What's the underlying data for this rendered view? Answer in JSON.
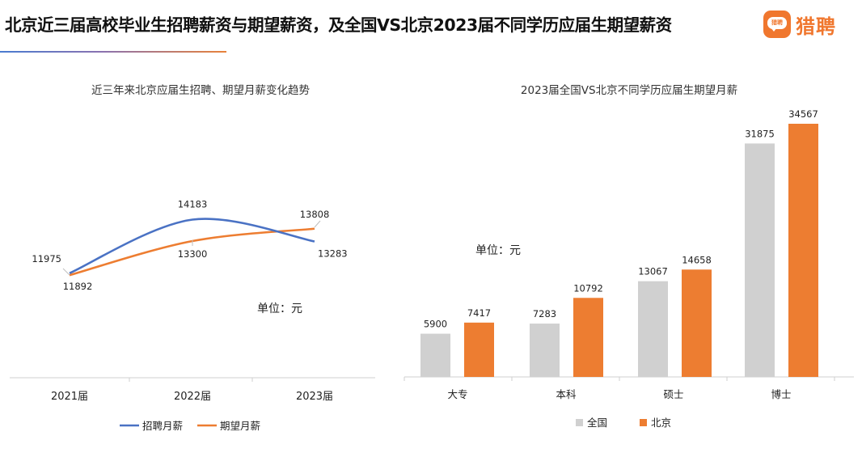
{
  "header": {
    "title": "北京近三届高校毕业生招聘薪资与期望薪资，及全国VS北京2023届不同学历应届生期望薪资",
    "brand_logo_text": "猎聘",
    "brand_name": "猎聘"
  },
  "colors": {
    "blue": "#4a72c4",
    "orange": "#ed7d31",
    "gray": "#d0d0d0"
  },
  "chart_data": [
    {
      "type": "line",
      "title": "近三年来北京应届生招聘、期望月薪变化趋势",
      "unit_label": "单位：元",
      "categories": [
        "2021届",
        "2022届",
        "2023届"
      ],
      "series": [
        {
          "name": "招聘月薪",
          "values": [
            11975,
            14183,
            13283
          ],
          "color": "#4a72c4"
        },
        {
          "name": "期望月薪",
          "values": [
            11892,
            13300,
            13808
          ],
          "color": "#ed7d31"
        }
      ],
      "legend": "bottom",
      "grid": false,
      "smooth": true
    },
    {
      "type": "bar",
      "title": "2023届全国VS北京不同学历应届生期望月薪",
      "unit_label": "单位：元",
      "categories": [
        "大专",
        "本科",
        "硕士",
        "博士"
      ],
      "series": [
        {
          "name": "全国",
          "values": [
            5900,
            7283,
            13067,
            31875
          ],
          "color": "#d0d0d0"
        },
        {
          "name": "北京",
          "values": [
            7417,
            10792,
            14658,
            34567
          ],
          "color": "#ed7d31"
        }
      ],
      "legend": "bottom",
      "grid": false,
      "ylim": [
        0,
        35000
      ]
    }
  ]
}
